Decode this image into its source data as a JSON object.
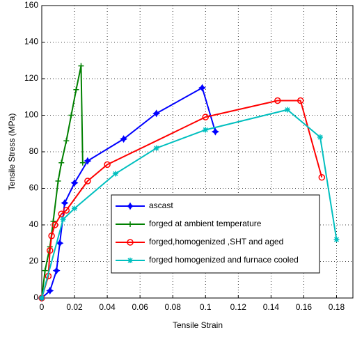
{
  "chart_data": {
    "type": "line",
    "x_label": "Tensile Strain",
    "y_label": "Tensile Stress (MPa)",
    "xlim": [
      0,
      0.19
    ],
    "ylim": [
      0,
      160
    ],
    "xticks": [
      0,
      0.02,
      0.04,
      0.06,
      0.08,
      0.1,
      0.12,
      0.14,
      0.16,
      0.18
    ],
    "yticks": [
      0,
      20,
      40,
      60,
      80,
      100,
      120,
      140,
      160
    ],
    "grid": true,
    "legend": "bottom-right",
    "series": [
      {
        "name": "ascast",
        "color": "#0000ff",
        "marker": "star",
        "x": [
          0,
          0.005,
          0.009,
          0.011,
          0.014,
          0.02,
          0.028,
          0.05,
          0.07,
          0.098,
          0.106
        ],
        "values": [
          0,
          4,
          15,
          30,
          52,
          63,
          75,
          87,
          101,
          115,
          91
        ]
      },
      {
        "name": "forged at ambient temperature",
        "color": "#008000",
        "marker": "plus",
        "x": [
          0,
          0.002,
          0.005,
          0.007,
          0.01,
          0.012,
          0.015,
          0.018,
          0.021,
          0.024,
          0.025
        ],
        "values": [
          0,
          15,
          28,
          42,
          64,
          74,
          86,
          100,
          114,
          127,
          74
        ]
      },
      {
        "name": "forged,homogenized ,SHT and aged",
        "color": "#ff0000",
        "marker": "circle",
        "x": [
          0,
          0.004,
          0.005,
          0.006,
          0.008,
          0.012,
          0.015,
          0.028,
          0.04,
          0.1,
          0.144,
          0.158,
          0.171
        ],
        "values": [
          0,
          12,
          26,
          34,
          40,
          46,
          48,
          64,
          73,
          99,
          108,
          108,
          66
        ]
      },
      {
        "name": "forged homogenized and furnace cooled",
        "color": "#00bfbf",
        "marker": "asterisk",
        "x": [
          0,
          0.013,
          0.02,
          0.045,
          0.07,
          0.1,
          0.15,
          0.17,
          0.18
        ],
        "values": [
          0,
          43,
          49,
          68,
          82,
          92,
          103,
          88,
          32
        ]
      }
    ]
  }
}
